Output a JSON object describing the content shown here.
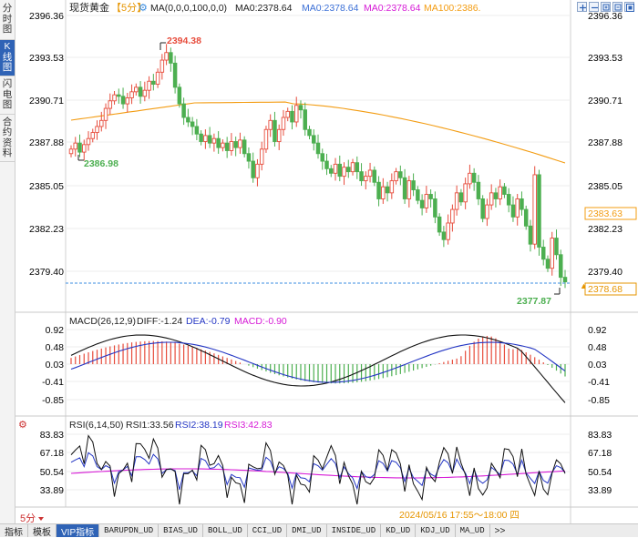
{
  "sidebar": {
    "tabs": [
      {
        "label": "分时图",
        "active": false
      },
      {
        "label": "K线图",
        "active": true
      },
      {
        "label": "闪电图",
        "active": false
      },
      {
        "label": "合约资料",
        "active": false
      }
    ]
  },
  "header": {
    "instrument": "现货黄金",
    "period_tag": "【5分】",
    "ma_label": "MA(0,0,0,100,0,0)",
    "ma_value": "MA0:2378.64",
    "ma0_value": "MA0:2378.64",
    "ma0b_value": "MA0:2378.64",
    "ma100_value": "MA100:2386."
  },
  "toolbar_icons": [
    "add-panel-icon",
    "remove-panel-icon",
    "zoom-in-icon",
    "zoom-out-icon",
    "fullscreen-icon"
  ],
  "price_axis": {
    "ticks": [
      "2396.36",
      "2393.53",
      "2390.71",
      "2387.88",
      "2385.05",
      "2382.23",
      "2379.40"
    ]
  },
  "annotations": {
    "high": "2394.38",
    "low_left": "2386.98",
    "low_right": "2377.87",
    "ma_tag": "2383.63",
    "last_tag": "2378.68"
  },
  "macd": {
    "label": "MACD(26,12,9)",
    "diff": "DIFF:-1.24",
    "dea": "DEA:-0.79",
    "macd": "MACD:-0.90",
    "ticks": [
      "0.92",
      "0.48",
      "0.03",
      "-0.41",
      "-0.85"
    ]
  },
  "rsi": {
    "label": "RSI(6,14,50)",
    "rsi1": "RSI1:33.56",
    "rsi2": "RSI2:38.19",
    "rsi3": "RSI3:42.83",
    "ticks": [
      "83.83",
      "67.18",
      "50.54",
      "33.89"
    ]
  },
  "period": "5分",
  "time_range": "2024/05/16 17:55～18:00 四",
  "bottom_tabs": [
    {
      "label": "指标",
      "active": false
    },
    {
      "label": "模板",
      "active": false
    },
    {
      "label": "VIP指标",
      "active": true
    },
    {
      "label": "BARUPDN_UD",
      "active": false
    },
    {
      "label": "BIAS_UD",
      "active": false
    },
    {
      "label": "BOLL_UD",
      "active": false
    },
    {
      "label": "CCI_UD",
      "active": false
    },
    {
      "label": "DMI_UD",
      "active": false
    },
    {
      "label": "INSIDE_UD",
      "active": false
    },
    {
      "label": "KD_UD",
      "active": false
    },
    {
      "label": "KDJ_UD",
      "active": false
    },
    {
      "label": "MA_UD",
      "active": false
    },
    {
      "label": ">>",
      "active": false
    }
  ],
  "colors": {
    "up": "#e74c3c",
    "down": "#4caf50",
    "ma100": "#f39c12",
    "dea": "#2436c4",
    "macd_label": "#d61ad6",
    "grid": "#e6e6e6",
    "accent": "#2f63b6"
  }
}
